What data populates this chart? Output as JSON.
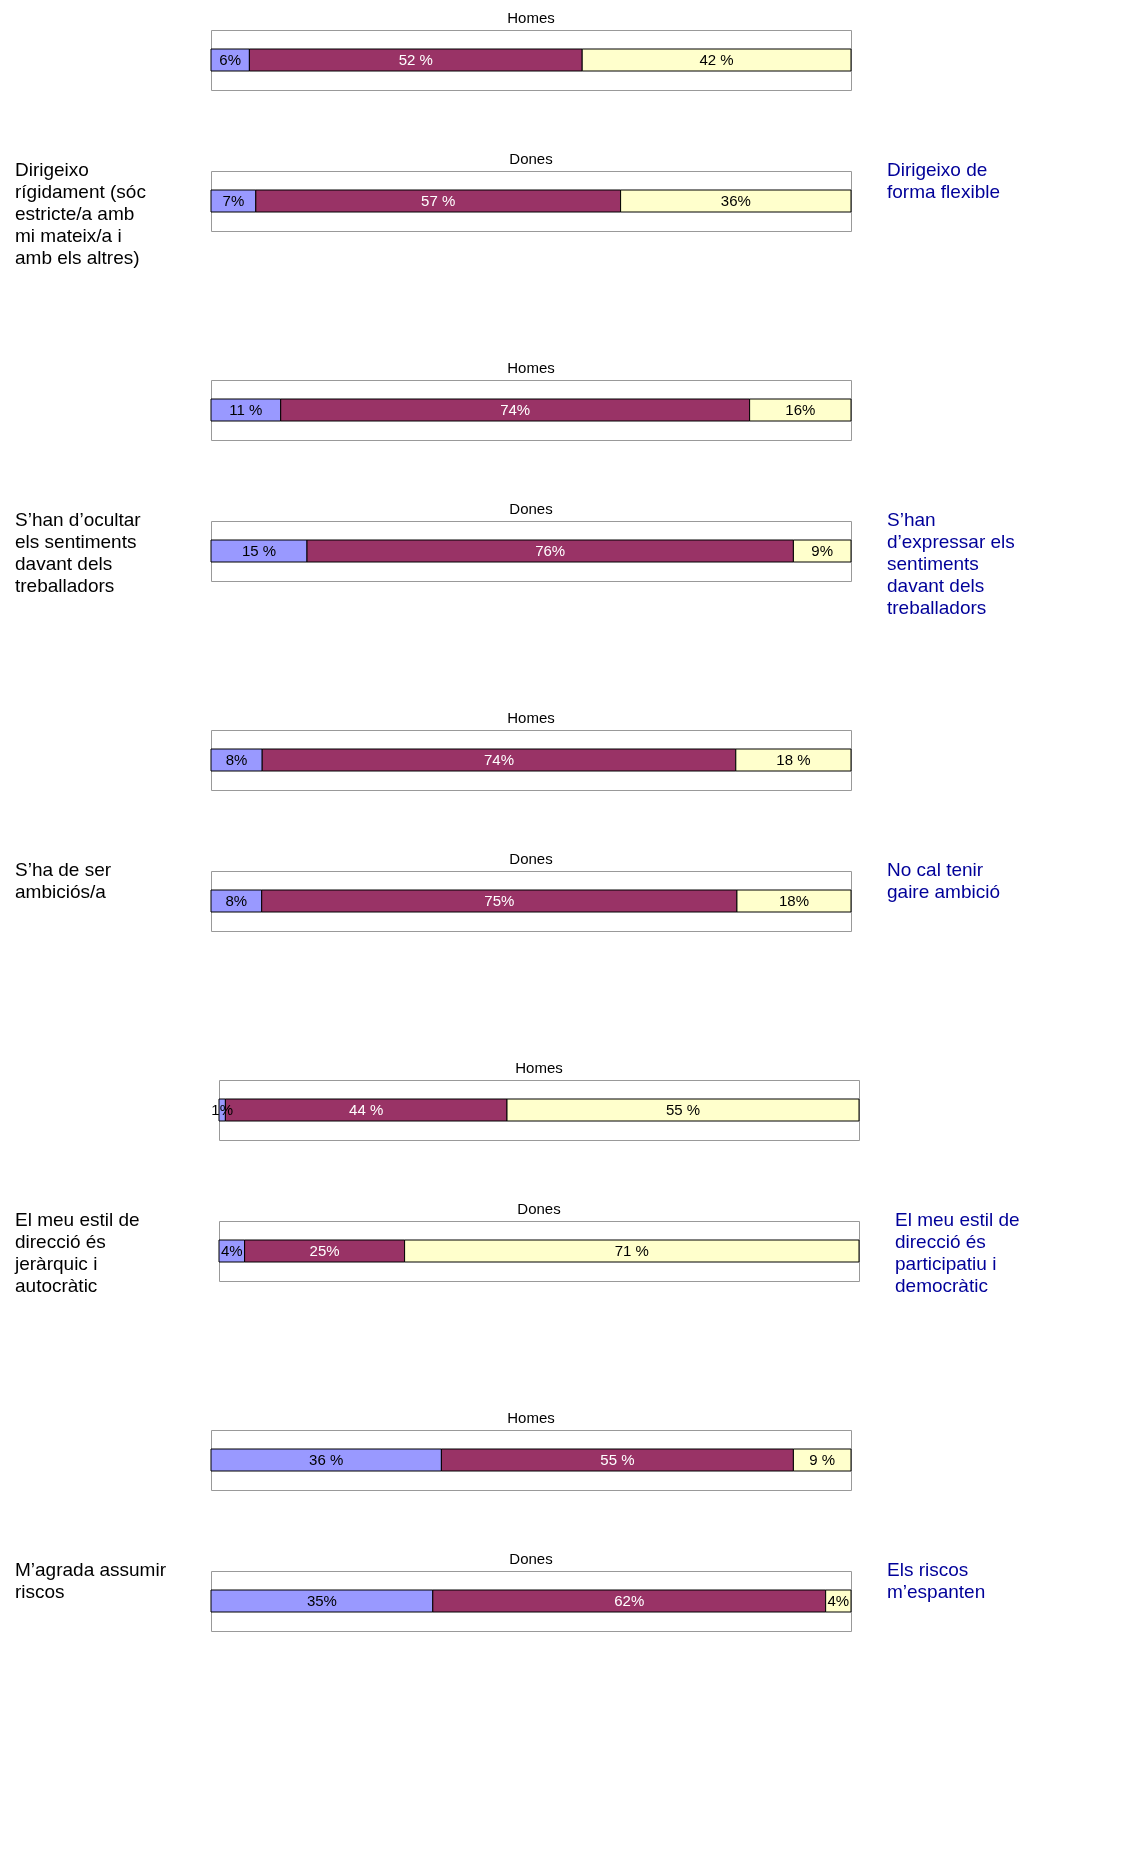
{
  "chart_data": [
    {
      "type": "other",
      "annotations": [
        "Dirigeixo rígidament (sóc estricte/a amb mi mateix/a i amb els altres)"
      ],
      "color": "#000000"
    },
    {
      "type": "bar",
      "orientation": "horizontal",
      "stacked": true,
      "title": "Homes",
      "categories": [
        null
      ],
      "series": [
        {
          "color": "#9999ff",
          "values": [
            6
          ],
          "value_labels": [
            "6%"
          ]
        },
        {
          "color": "#993366",
          "values": [
            52
          ],
          "value_labels": [
            "52 %"
          ]
        },
        {
          "color": "#ffffcc",
          "values": [
            42
          ],
          "value_labels": [
            "42 %"
          ]
        }
      ]
    },
    {
      "type": "bar",
      "orientation": "horizontal",
      "stacked": true,
      "title": "Dones",
      "categories": [
        null
      ],
      "series": [
        {
          "color": "#9999ff",
          "values": [
            7
          ],
          "value_labels": [
            "7%"
          ]
        },
        {
          "color": "#993366",
          "values": [
            57
          ],
          "value_labels": [
            "57 %"
          ]
        },
        {
          "color": "#ffffcc",
          "values": [
            36
          ],
          "value_labels": [
            "36%"
          ]
        }
      ]
    },
    {
      "type": "other",
      "annotations": [
        "Dirigeixo de forma flexible"
      ],
      "color": "#000099"
    },
    {
      "type": "other",
      "annotations": [
        "S’han d’ocultar els sentiments davant dels treballadors"
      ],
      "color": "#000000"
    },
    {
      "type": "bar",
      "orientation": "horizontal",
      "stacked": true,
      "title": "Homes",
      "categories": [
        null
      ],
      "series": [
        {
          "color": "#9999ff",
          "values": [
            11
          ],
          "value_labels": [
            "11 %"
          ]
        },
        {
          "color": "#993366",
          "values": [
            74
          ],
          "value_labels": [
            "74%"
          ]
        },
        {
          "color": "#ffffcc",
          "values": [
            16
          ],
          "value_labels": [
            "16%"
          ]
        }
      ]
    },
    {
      "type": "bar",
      "orientation": "horizontal",
      "stacked": true,
      "title": "Dones",
      "categories": [
        null
      ],
      "series": [
        {
          "color": "#9999ff",
          "values": [
            15
          ],
          "value_labels": [
            "15 %"
          ]
        },
        {
          "color": "#993366",
          "values": [
            76
          ],
          "value_labels": [
            "76%"
          ]
        },
        {
          "color": "#ffffcc",
          "values": [
            9
          ],
          "value_labels": [
            "9%"
          ]
        }
      ]
    },
    {
      "type": "other",
      "annotations": [
        "S’han d’expressar els sentiments davant dels treballadors"
      ],
      "color": "#000099"
    },
    {
      "type": "other",
      "annotations": [
        "S’ha de ser ambiciós/a"
      ],
      "color": "#000000"
    },
    {
      "type": "bar",
      "orientation": "horizontal",
      "stacked": true,
      "title": "Homes",
      "categories": [
        null
      ],
      "series": [
        {
          "color": "#9999ff",
          "values": [
            8
          ],
          "value_labels": [
            "8%"
          ]
        },
        {
          "color": "#993366",
          "values": [
            74
          ],
          "value_labels": [
            "74%"
          ]
        },
        {
          "color": "#ffffcc",
          "values": [
            18
          ],
          "value_labels": [
            "18 %"
          ]
        }
      ]
    },
    {
      "type": "bar",
      "orientation": "horizontal",
      "stacked": true,
      "title": "Dones",
      "categories": [
        null
      ],
      "series": [
        {
          "color": "#9999ff",
          "values": [
            8
          ],
          "value_labels": [
            "8%"
          ]
        },
        {
          "color": "#993366",
          "values": [
            75
          ],
          "value_labels": [
            "75%"
          ]
        },
        {
          "color": "#ffffcc",
          "values": [
            18
          ],
          "value_labels": [
            "18%"
          ]
        }
      ]
    },
    {
      "type": "other",
      "annotations": [
        "No cal tenir gaire ambició"
      ],
      "color": "#000099"
    },
    {
      "type": "other",
      "annotations": [
        "El meu estil de direcció és jeràrquic i autocràtic"
      ],
      "color": "#000000"
    },
    {
      "type": "bar",
      "orientation": "horizontal",
      "stacked": true,
      "title": "Homes",
      "categories": [
        null
      ],
      "series": [
        {
          "color": "#9999ff",
          "values": [
            1
          ],
          "value_labels": [
            "1%"
          ]
        },
        {
          "color": "#993366",
          "values": [
            44
          ],
          "value_labels": [
            "44 %"
          ]
        },
        {
          "color": "#ffffcc",
          "values": [
            55
          ],
          "value_labels": [
            "55 %"
          ]
        }
      ]
    },
    {
      "type": "bar",
      "orientation": "horizontal",
      "stacked": true,
      "title": "Dones",
      "categories": [
        null
      ],
      "series": [
        {
          "color": "#9999ff",
          "values": [
            4
          ],
          "value_labels": [
            "4%"
          ]
        },
        {
          "color": "#993366",
          "values": [
            25
          ],
          "value_labels": [
            "25%"
          ]
        },
        {
          "color": "#ffffcc",
          "values": [
            71
          ],
          "value_labels": [
            "71 %"
          ]
        }
      ]
    },
    {
      "type": "other",
      "annotations": [
        "El meu estil de direcció és participatiu i democràtic"
      ],
      "color": "#000099"
    },
    {
      "type": "other",
      "annotations": [
        "M’agrada assumir riscos"
      ],
      "color": "#000000"
    },
    {
      "type": "bar",
      "orientation": "horizontal",
      "stacked": true,
      "title": "Homes",
      "categories": [
        null
      ],
      "series": [
        {
          "color": "#9999ff",
          "values": [
            36
          ],
          "value_labels": [
            "36 %"
          ]
        },
        {
          "color": "#993366",
          "values": [
            55
          ],
          "value_labels": [
            "55 %"
          ]
        },
        {
          "color": "#ffffcc",
          "values": [
            9
          ],
          "value_labels": [
            "9 %"
          ]
        }
      ]
    },
    {
      "type": "bar",
      "orientation": "horizontal",
      "stacked": true,
      "title": "Dones",
      "categories": [
        null
      ],
      "series": [
        {
          "color": "#9999ff",
          "values": [
            35
          ],
          "value_labels": [
            "35%"
          ]
        },
        {
          "color": "#993366",
          "values": [
            62
          ],
          "value_labels": [
            "62%"
          ]
        },
        {
          "color": "#ffffcc",
          "values": [
            4
          ],
          "value_labels": [
            "4%"
          ]
        }
      ]
    },
    {
      "type": "other",
      "annotations": [
        "Els riscos m’espanten"
      ],
      "color": "#000099"
    }
  ]
}
